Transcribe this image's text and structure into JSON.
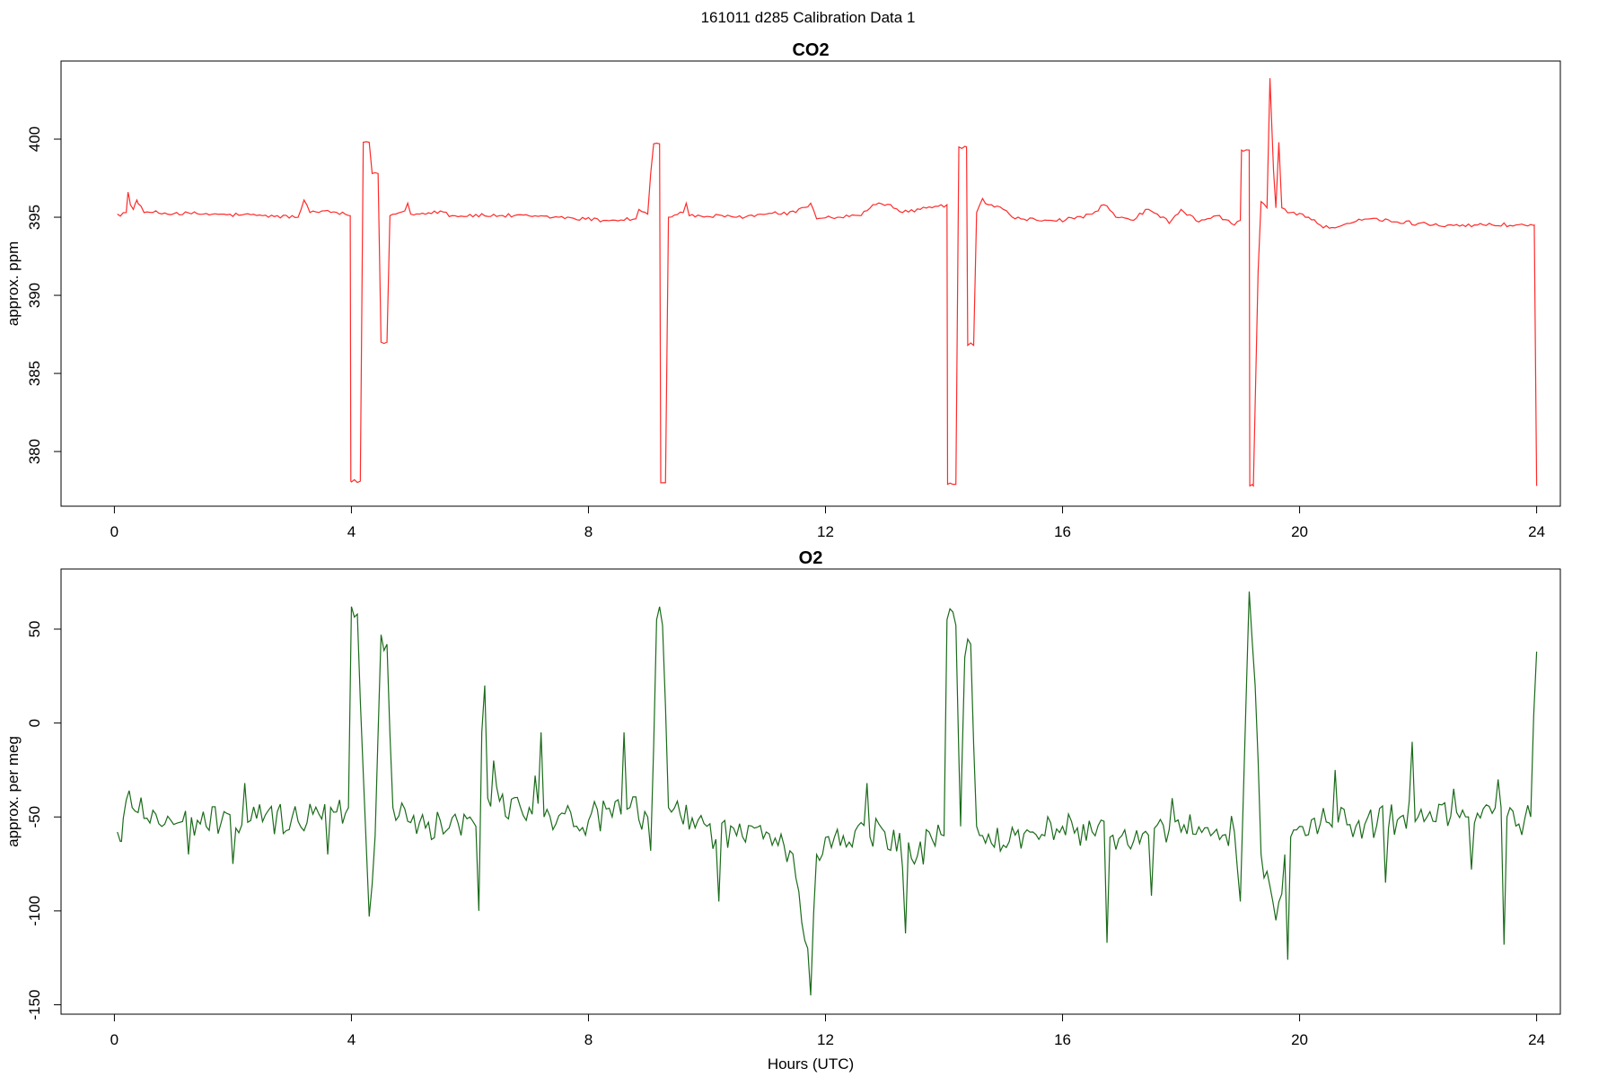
{
  "figure": {
    "title": "161011   d285   Calibration Data 1",
    "xlabel": "Hours (UTC)"
  },
  "chart_data": [
    {
      "type": "line",
      "title": "CO2",
      "ylabel": "approx. ppm",
      "color": "#ff2a2a",
      "xlim": [
        -0.9,
        24.4
      ],
      "ylim": [
        376.5,
        405
      ],
      "xticks": [
        0,
        4,
        8,
        12,
        16,
        20,
        24
      ],
      "yticks": [
        380,
        385,
        390,
        395,
        400
      ],
      "x_step_hours": 0.05,
      "anchors": [
        [
          0.05,
          395.2
        ],
        [
          0.2,
          395.3
        ],
        [
          0.23,
          396.6
        ],
        [
          0.27,
          395.8
        ],
        [
          0.32,
          395.5
        ],
        [
          0.38,
          396.1
        ],
        [
          0.5,
          395.3
        ],
        [
          1.5,
          395.2
        ],
        [
          2.5,
          395.1
        ],
        [
          3.1,
          395.0
        ],
        [
          3.2,
          396.1
        ],
        [
          3.3,
          395.3
        ],
        [
          3.5,
          395.4
        ],
        [
          3.98,
          395.1
        ],
        [
          3.99,
          378.1
        ],
        [
          4.15,
          378.1
        ],
        [
          4.2,
          399.8
        ],
        [
          4.3,
          399.8
        ],
        [
          4.35,
          397.8
        ],
        [
          4.45,
          397.8
        ],
        [
          4.5,
          387.0
        ],
        [
          4.6,
          387.0
        ],
        [
          4.65,
          395.1
        ],
        [
          4.9,
          395.4
        ],
        [
          4.95,
          395.9
        ],
        [
          5.0,
          395.2
        ],
        [
          5.5,
          395.4
        ],
        [
          5.7,
          395.1
        ],
        [
          6.5,
          395.1
        ],
        [
          7.5,
          395.0
        ],
        [
          8.3,
          394.8
        ],
        [
          8.8,
          394.9
        ],
        [
          8.85,
          395.5
        ],
        [
          9.0,
          395.2
        ],
        [
          9.05,
          397.8
        ],
        [
          9.1,
          399.7
        ],
        [
          9.2,
          399.7
        ],
        [
          9.22,
          378.0
        ],
        [
          9.3,
          378.0
        ],
        [
          9.35,
          395.0
        ],
        [
          9.6,
          395.3
        ],
        [
          9.65,
          395.9
        ],
        [
          9.7,
          395.1
        ],
        [
          10.5,
          395.0
        ],
        [
          11.0,
          395.2
        ],
        [
          11.5,
          395.3
        ],
        [
          11.75,
          395.9
        ],
        [
          11.85,
          394.9
        ],
        [
          12.2,
          395.0
        ],
        [
          12.6,
          395.1
        ],
        [
          12.8,
          395.8
        ],
        [
          13.1,
          395.8
        ],
        [
          13.3,
          395.3
        ],
        [
          13.6,
          395.5
        ],
        [
          13.9,
          395.7
        ],
        [
          13.95,
          395.8
        ],
        [
          14.05,
          395.8
        ],
        [
          14.06,
          377.9
        ],
        [
          14.2,
          377.9
        ],
        [
          14.25,
          399.5
        ],
        [
          14.38,
          399.5
        ],
        [
          14.4,
          386.8
        ],
        [
          14.5,
          386.8
        ],
        [
          14.55,
          395.3
        ],
        [
          14.65,
          396.2
        ],
        [
          14.75,
          395.8
        ],
        [
          15.0,
          395.5
        ],
        [
          15.2,
          394.9
        ],
        [
          15.8,
          394.8
        ],
        [
          16.2,
          394.9
        ],
        [
          16.5,
          395.2
        ],
        [
          16.7,
          395.8
        ],
        [
          16.9,
          395.0
        ],
        [
          17.2,
          394.8
        ],
        [
          17.4,
          395.5
        ],
        [
          17.6,
          395.2
        ],
        [
          17.8,
          394.6
        ],
        [
          18.0,
          395.5
        ],
        [
          18.3,
          394.7
        ],
        [
          18.6,
          395.1
        ],
        [
          18.9,
          394.5
        ],
        [
          19.0,
          394.8
        ],
        [
          19.02,
          399.3
        ],
        [
          19.15,
          399.3
        ],
        [
          19.16,
          377.8
        ],
        [
          19.22,
          377.8
        ],
        [
          19.3,
          391.5
        ],
        [
          19.35,
          396.0
        ],
        [
          19.45,
          395.6
        ],
        [
          19.5,
          403.9
        ],
        [
          19.56,
          398.0
        ],
        [
          19.6,
          395.6
        ],
        [
          19.65,
          399.8
        ],
        [
          19.7,
          395.6
        ],
        [
          19.85,
          395.3
        ],
        [
          20.05,
          395.2
        ],
        [
          20.3,
          394.6
        ],
        [
          20.5,
          394.3
        ],
        [
          20.8,
          394.6
        ],
        [
          21.2,
          394.9
        ],
        [
          21.6,
          394.7
        ],
        [
          22.0,
          394.6
        ],
        [
          22.5,
          394.5
        ],
        [
          23.0,
          394.5
        ],
        [
          23.96,
          394.5
        ],
        [
          24.0,
          377.8
        ]
      ],
      "noise_amplitude": 0.12
    },
    {
      "type": "line",
      "title": "O2",
      "ylabel": "approx. per meg",
      "color": "#1a6b1a",
      "xlim": [
        -0.9,
        24.4
      ],
      "ylim": [
        -155,
        82
      ],
      "xticks": [
        0,
        4,
        8,
        12,
        16,
        20,
        24
      ],
      "yticks": [
        -150,
        -100,
        -50,
        0,
        50
      ],
      "x_step_hours": 0.05,
      "anchors": [
        [
          0.05,
          -58
        ],
        [
          0.12,
          -63
        ],
        [
          0.2,
          -41
        ],
        [
          1.0,
          -54
        ],
        [
          2.0,
          -52
        ],
        [
          3.0,
          -50
        ],
        [
          3.9,
          -48
        ],
        [
          3.95,
          -45
        ],
        [
          4.0,
          62
        ],
        [
          4.1,
          58
        ],
        [
          4.15,
          12
        ],
        [
          4.25,
          -65
        ],
        [
          4.3,
          -103
        ],
        [
          4.4,
          -60
        ],
        [
          4.5,
          47
        ],
        [
          4.6,
          42
        ],
        [
          4.7,
          -45
        ],
        [
          5.0,
          -53
        ],
        [
          5.5,
          -52
        ],
        [
          6.0,
          -50
        ],
        [
          6.1,
          -55
        ],
        [
          6.15,
          -100
        ],
        [
          6.2,
          -5
        ],
        [
          6.25,
          20
        ],
        [
          6.3,
          -40
        ],
        [
          7.0,
          -45
        ],
        [
          8.0,
          -52
        ],
        [
          8.7,
          -45
        ],
        [
          9.0,
          -50
        ],
        [
          9.05,
          -68
        ],
        [
          9.15,
          55
        ],
        [
          9.25,
          52
        ],
        [
          9.35,
          -45
        ],
        [
          10.0,
          -55
        ],
        [
          10.5,
          -60
        ],
        [
          11.0,
          -58
        ],
        [
          11.4,
          -68
        ],
        [
          11.7,
          -120
        ],
        [
          11.75,
          -145
        ],
        [
          11.85,
          -70
        ],
        [
          12.3,
          -60
        ],
        [
          13.0,
          -58
        ],
        [
          13.5,
          -75
        ],
        [
          13.8,
          -62
        ],
        [
          14.0,
          -60
        ],
        [
          14.05,
          55
        ],
        [
          14.2,
          52
        ],
        [
          14.28,
          -55
        ],
        [
          14.35,
          35
        ],
        [
          14.45,
          42
        ],
        [
          14.55,
          -55
        ],
        [
          15.0,
          -65
        ],
        [
          15.5,
          -58
        ],
        [
          16.0,
          -55
        ],
        [
          16.5,
          -58
        ],
        [
          17.0,
          -60
        ],
        [
          17.5,
          -60
        ],
        [
          18.0,
          -58
        ],
        [
          18.5,
          -60
        ],
        [
          18.9,
          -58
        ],
        [
          19.0,
          -95
        ],
        [
          19.05,
          -40
        ],
        [
          19.15,
          70
        ],
        [
          19.25,
          20
        ],
        [
          19.35,
          -70
        ],
        [
          19.6,
          -105
        ],
        [
          19.75,
          -70
        ],
        [
          20.0,
          -55
        ],
        [
          21.0,
          -52
        ],
        [
          22.0,
          -50
        ],
        [
          23.0,
          -48
        ],
        [
          23.5,
          -50
        ],
        [
          23.9,
          -50
        ],
        [
          24.0,
          38
        ]
      ],
      "noise_amplitude": 8,
      "spikes": [
        [
          1.25,
          -70
        ],
        [
          2.0,
          -75
        ],
        [
          2.2,
          -32
        ],
        [
          3.6,
          -70
        ],
        [
          6.4,
          -20
        ],
        [
          7.1,
          -28
        ],
        [
          7.2,
          -5
        ],
        [
          8.6,
          -5
        ],
        [
          10.2,
          -95
        ],
        [
          12.7,
          -32
        ],
        [
          13.35,
          -112
        ],
        [
          16.75,
          -117
        ],
        [
          17.5,
          -92
        ],
        [
          17.85,
          -40
        ],
        [
          19.8,
          -126
        ],
        [
          20.6,
          -25
        ],
        [
          21.45,
          -85
        ],
        [
          21.9,
          -10
        ],
        [
          22.6,
          -35
        ],
        [
          22.9,
          -78
        ],
        [
          23.35,
          -30
        ],
        [
          23.45,
          -118
        ]
      ]
    }
  ]
}
